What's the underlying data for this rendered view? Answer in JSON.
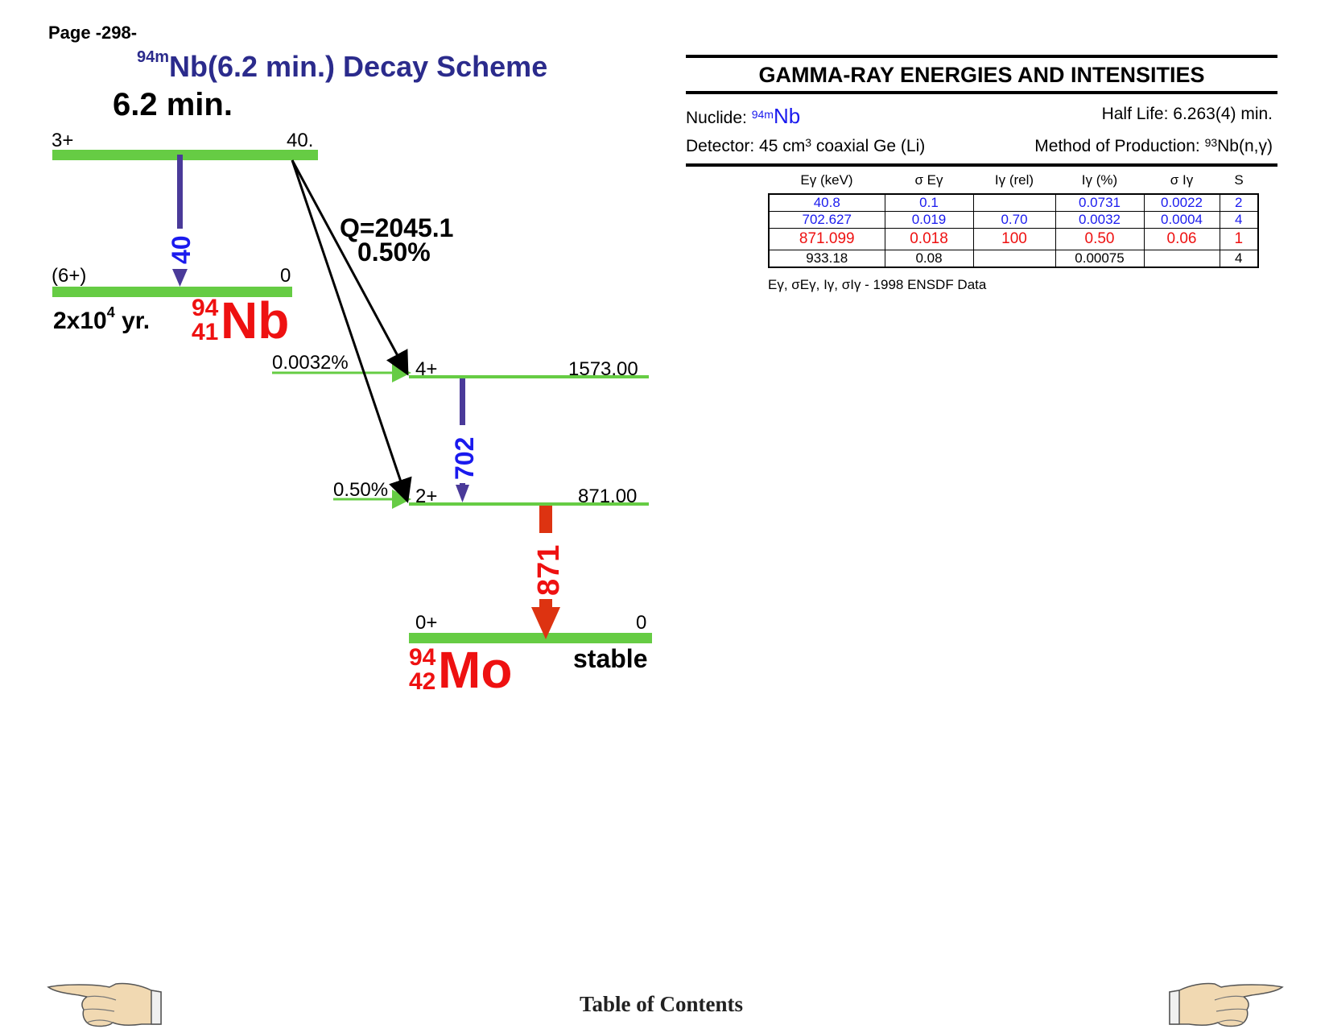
{
  "page": {
    "label": "Page -298-"
  },
  "title": {
    "mass": "94m",
    "text": "Nb(6.2 min.) Decay Scheme"
  },
  "scheme": {
    "parent_halflife": "6.2 min.",
    "parent_level": {
      "spin": "3+",
      "energy": "40."
    },
    "isomer_level": {
      "spin": "(6+)",
      "energy": "0",
      "halflife_base": "2x10",
      "halflife_exp": "4",
      "halflife_unit": " yr."
    },
    "nb_label": {
      "mass": "94",
      "z": "41",
      "symbol": "Nb"
    },
    "gamma_40": "40",
    "q_value": "Q=2045.1",
    "branch_total": "0.50%",
    "level_1573": {
      "spin": "4+",
      "energy": "1573.00",
      "feed": "0.0032%"
    },
    "level_871": {
      "spin": "2+",
      "energy": "871.00",
      "feed": "0.50%"
    },
    "gamma_702": "702",
    "gamma_871": "871",
    "ground": {
      "spin": "0+",
      "energy": "0",
      "status": "stable"
    },
    "mo_label": {
      "mass": "94",
      "z": "42",
      "symbol": "Mo"
    }
  },
  "panel": {
    "title": "GAMMA-RAY ENERGIES AND INTENSITIES",
    "nuclide_label": "Nuclide: ",
    "nuclide_mass": "94m",
    "nuclide_symbol": "Nb",
    "half_life": "Half Life: 6.263(4) min.",
    "detector_pre": "Detector: 45 cm",
    "detector_sup": "3",
    "detector_post": " coaxial Ge (Li)",
    "method_pre": "Method of Production: ",
    "method_sup": "93",
    "method_post": "Nb(n,γ)"
  },
  "table": {
    "headers": [
      "Eγ (keV)",
      "σ Eγ",
      "Iγ (rel)",
      "Iγ (%)",
      "σ Iγ",
      "S"
    ],
    "rows": [
      [
        "40.8",
        "0.1",
        "",
        "0.0731",
        "0.0022",
        "2"
      ],
      [
        "702.627",
        "0.019",
        "0.70",
        "0.0032",
        "0.0004",
        "4"
      ],
      [
        "871.099",
        "0.018",
        "100",
        "0.50",
        "0.06",
        "1"
      ],
      [
        "933.18",
        "0.08",
        "",
        "0.00075",
        "",
        "4"
      ]
    ]
  },
  "footnote": "Eγ, σEγ, Iγ, σIγ - 1998 ENSDF Data",
  "nav": {
    "toc": "Table of Contents"
  },
  "colors": {
    "level": "#66cc44",
    "gamma_small": "#4a3a99",
    "gamma_big": "#dd3311",
    "title": "#2b2b8c",
    "blue": "#1a1aee",
    "red": "#ee1111"
  }
}
